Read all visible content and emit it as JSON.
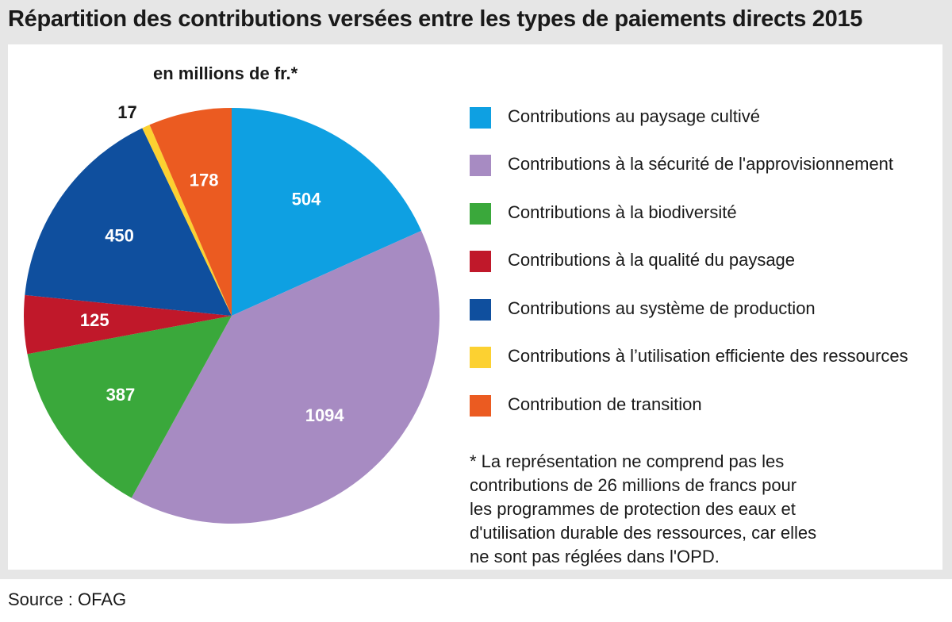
{
  "header": {
    "title": "Répartition des contributions versées entre les types de paiements directs 2015"
  },
  "chart_data": {
    "type": "pie",
    "title": "Répartition des contributions versées entre les types de paiements directs 2015",
    "unit_label": "en millions de fr.*",
    "direction": "clockwise from top",
    "slices": [
      {
        "name": "Contributions au paysage cultivé",
        "value": 504,
        "label": "504",
        "color": "#0ea0e2",
        "label_color": "#ffffff"
      },
      {
        "name": "Contributions à la sécurité de l'approvisionnement",
        "value": 1094,
        "label": "1094",
        "color": "#a78bc2",
        "label_color": "#ffffff"
      },
      {
        "name": "Contributions à la biodiversité",
        "value": 387,
        "label": "387",
        "color": "#3aa83b",
        "label_color": "#ffffff"
      },
      {
        "name": "Contributions à la qualité du paysage",
        "value": 125,
        "label": "125",
        "color": "#c0182a",
        "label_color": "#ffffff"
      },
      {
        "name": "Contributions au système de production",
        "value": 450,
        "label": "450",
        "color": "#0f4f9e",
        "label_color": "#ffffff"
      },
      {
        "name": "Contributions à l’utilisation efficiente des ressources",
        "value": 17,
        "label": "17",
        "color": "#fcd131",
        "label_color": "#1a1a1a",
        "label_outside": true
      },
      {
        "name": "Contribution de transition",
        "value": 178,
        "label": "178",
        "color": "#eb5b21",
        "label_color": "#ffffff"
      }
    ]
  },
  "legend": {
    "items": [
      {
        "label": "Contributions au paysage cultivé",
        "color": "#0ea0e2"
      },
      {
        "label": "Contributions à la sécurité de l'approvisionnement",
        "color": "#a78bc2"
      },
      {
        "label": "Contributions à la biodiversité",
        "color": "#3aa83b"
      },
      {
        "label": "Contributions à la qualité du paysage",
        "color": "#c0182a"
      },
      {
        "label": "Contributions au système de production",
        "color": "#0f4f9e"
      },
      {
        "label": "Contributions à l’utilisation efficiente des ressources",
        "color": "#fcd131"
      },
      {
        "label": "Contribution de transition",
        "color": "#eb5b21"
      }
    ]
  },
  "footnote": {
    "lines": [
      "* La représentation ne comprend pas les",
      "contributions de 26 millions de francs pour",
      "les programmes de protection des eaux et",
      "d'utilisation durable des ressources, car elles",
      "ne sont pas réglées dans l'OPD."
    ]
  },
  "source": "Source : OFAG"
}
